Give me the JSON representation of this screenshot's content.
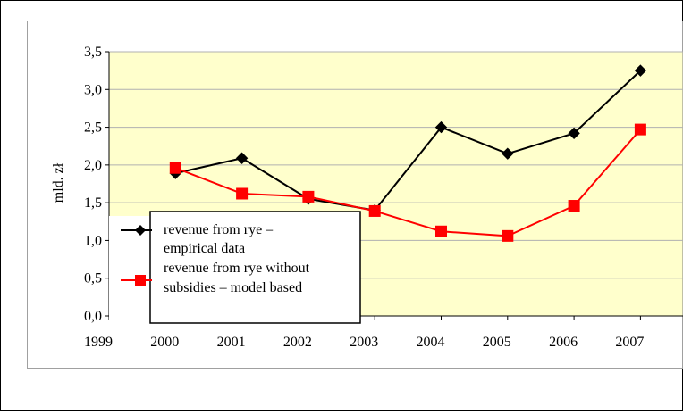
{
  "chart_data": {
    "type": "line",
    "title": "",
    "xlabel": "",
    "ylabel": "mld. zł",
    "categories": [
      "1999",
      "2000",
      "2001",
      "2002",
      "2003",
      "2004",
      "2005",
      "2006",
      "2007"
    ],
    "ylim": [
      0,
      3.5
    ],
    "yticks": [
      "0,0",
      "0,5",
      "1,0",
      "1,5",
      "2,0",
      "2,5",
      "3,0",
      "3,5"
    ],
    "grid": true,
    "legend": "bottom-left",
    "series": [
      {
        "name": "revenue from rye – empirical data",
        "legend_lines": [
          "revenue from rye –",
          "empirical data"
        ],
        "color": "#000000",
        "marker": "diamond",
        "x": [
          "2000",
          "2001",
          "2002",
          "2003",
          "2004",
          "2005",
          "2006",
          "2007"
        ],
        "values": [
          1.89,
          2.09,
          1.55,
          1.4,
          2.5,
          2.15,
          2.42,
          3.25
        ]
      },
      {
        "name": "revenue from rye without subsidies – model based",
        "legend_lines": [
          "revenue from rye without",
          "subsidies – model based"
        ],
        "color": "#ff0000",
        "marker": "square",
        "x": [
          "2000",
          "2001",
          "2002",
          "2003",
          "2004",
          "2005",
          "2006",
          "2007"
        ],
        "values": [
          1.96,
          1.62,
          1.58,
          1.39,
          1.12,
          1.06,
          1.46,
          2.47
        ]
      }
    ],
    "colors": {
      "plot_background": "#ffffcc",
      "gridline": "#b0b0b0"
    }
  }
}
